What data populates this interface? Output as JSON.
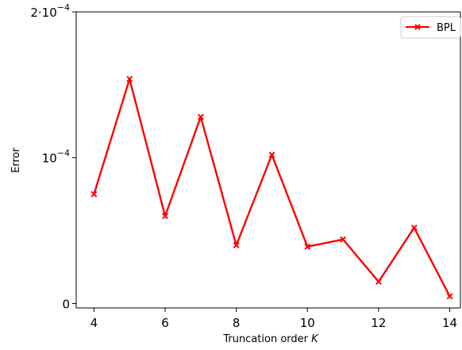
{
  "chart_data": {
    "type": "line",
    "xlabel": "Truncation order",
    "xlabel_var": "K",
    "ylabel": "Error",
    "x_ticks": [
      4,
      6,
      8,
      10,
      12,
      14
    ],
    "y_ticks": [
      {
        "value": 0,
        "label": "0",
        "exp": ""
      },
      {
        "value": 0.0001,
        "label": "10",
        "exp": "−4"
      },
      {
        "value": 0.0002,
        "label": "2·10",
        "exp": "−4"
      }
    ],
    "xlim": [
      3.5,
      14.3
    ],
    "ylim": [
      -3e-06,
      0.0002
    ],
    "grid": false,
    "legend_position": "top-right",
    "series": [
      {
        "name": "BPL",
        "color": "#ff0000",
        "marker": "x",
        "x": [
          4,
          5,
          6,
          7,
          8,
          9,
          10,
          11,
          12,
          13,
          14
        ],
        "y": [
          7.5e-05,
          0.000154,
          6e-05,
          0.000128,
          4e-05,
          0.000102,
          3.9e-05,
          4.4e-05,
          1.5e-05,
          5.2e-05,
          5e-06
        ]
      }
    ]
  }
}
